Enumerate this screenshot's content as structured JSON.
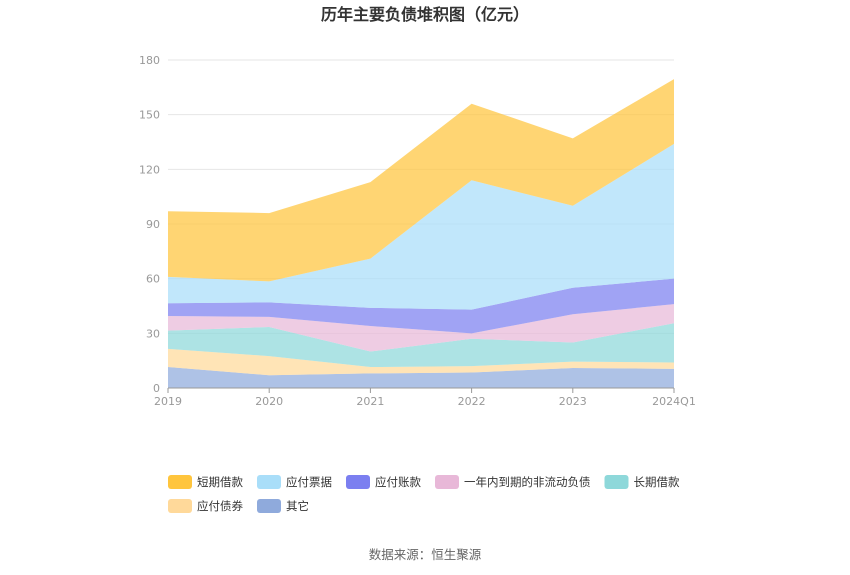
{
  "chart_data": {
    "type": "area",
    "title": "历年主要负债堆积图（亿元）",
    "categories": [
      "2019",
      "2020",
      "2021",
      "2022",
      "2023",
      "2024Q1"
    ],
    "ylim": [
      0,
      180
    ],
    "yticks": [
      0,
      30,
      60,
      90,
      120,
      150,
      180
    ],
    "stacked": true,
    "grid": true,
    "legend_position": "bottom",
    "series": [
      {
        "name": "其它",
        "color": "#8FAADC",
        "values": [
          11.5,
          7,
          8,
          8.5,
          11,
          10.5
        ]
      },
      {
        "name": "应付债券",
        "color": "#FFD99A",
        "values": [
          10,
          10.5,
          3.5,
          3.5,
          3.5,
          3.5
        ]
      },
      {
        "name": "长期借款",
        "color": "#8ED8DA",
        "values": [
          10,
          16,
          8.5,
          15,
          10.5,
          21.5
        ]
      },
      {
        "name": "一年内到期的非流动负债",
        "color": "#E8B8D8",
        "values": [
          8,
          5.5,
          14,
          3,
          15.5,
          10.5
        ]
      },
      {
        "name": "应付账款",
        "color": "#7B7FF0",
        "values": [
          7,
          8,
          10,
          13,
          14.5,
          14
        ]
      },
      {
        "name": "应付票据",
        "color": "#A9DEF9",
        "values": [
          14.5,
          11.5,
          27,
          71,
          45,
          74
        ]
      },
      {
        "name": "短期借款",
        "color": "#FFC53D",
        "values": [
          36,
          37.5,
          42,
          42,
          37,
          35.5
        ]
      }
    ],
    "legend_order": [
      "短期借款",
      "应付票据",
      "应付账款",
      "一年内到期的非流动负债",
      "长期借款",
      "应付债券",
      "其它"
    ]
  },
  "source": "数据来源：恒生聚源"
}
